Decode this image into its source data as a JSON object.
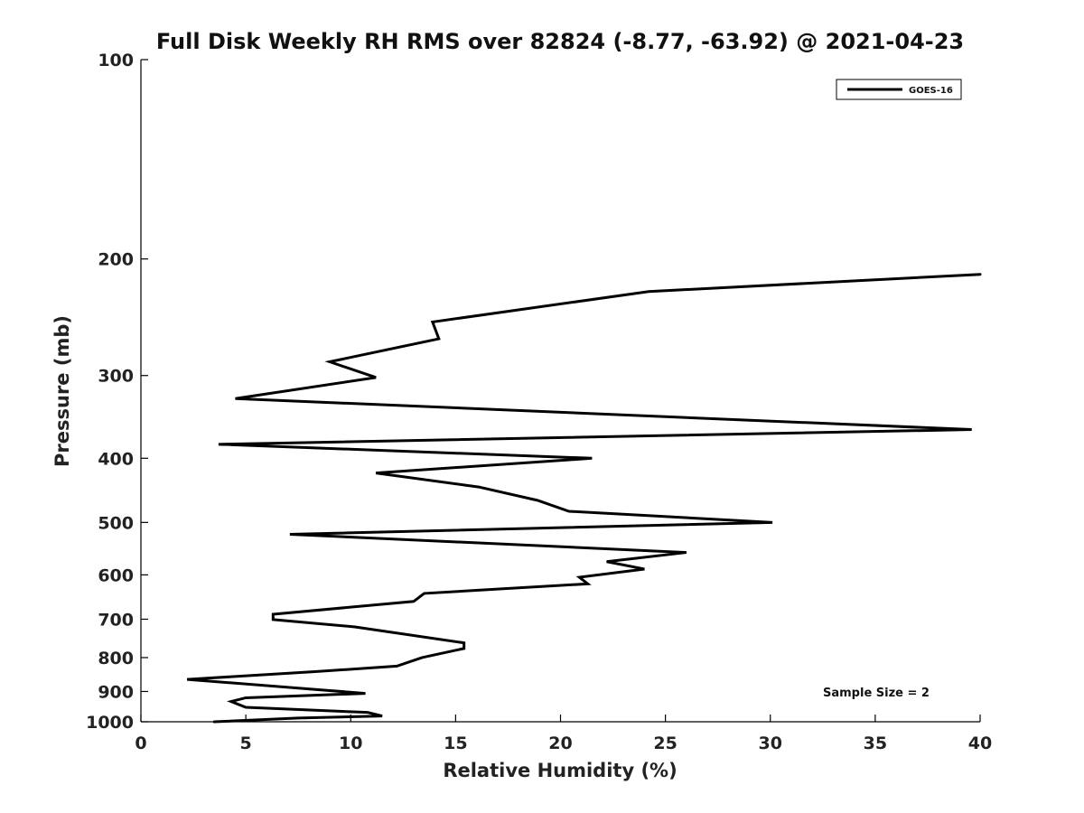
{
  "chart_data": {
    "type": "line",
    "title": "Full Disk Weekly RH RMS over 82824 (-8.77, -63.92) @ 2021-04-23",
    "xlabel": "Relative Humidity (%)",
    "ylabel": "Pressure (mb)",
    "xlim": [
      0,
      40
    ],
    "ylim": [
      1000,
      100
    ],
    "yscale": "log",
    "reversed_y": true,
    "grid": false,
    "legend_position": "top-right",
    "xticks": [
      0,
      5,
      10,
      15,
      20,
      25,
      30,
      35,
      40
    ],
    "yticks": [
      100,
      200,
      300,
      400,
      500,
      600,
      700,
      800,
      900,
      1000
    ],
    "series": [
      {
        "name": "GOES-16",
        "color": "#000000",
        "points": [
          {
            "x": 40.0,
            "y": 211
          },
          {
            "x": 24.2,
            "y": 224
          },
          {
            "x": 13.9,
            "y": 249
          },
          {
            "x": 14.2,
            "y": 264
          },
          {
            "x": 9.0,
            "y": 286
          },
          {
            "x": 11.2,
            "y": 302
          },
          {
            "x": 4.5,
            "y": 325
          },
          {
            "x": 39.6,
            "y": 362
          },
          {
            "x": 3.7,
            "y": 381
          },
          {
            "x": 21.5,
            "y": 400
          },
          {
            "x": 11.2,
            "y": 421
          },
          {
            "x": 16.1,
            "y": 442
          },
          {
            "x": 18.9,
            "y": 463
          },
          {
            "x": 20.4,
            "y": 481
          },
          {
            "x": 30.1,
            "y": 500
          },
          {
            "x": 7.1,
            "y": 521
          },
          {
            "x": 26.0,
            "y": 555
          },
          {
            "x": 22.2,
            "y": 573
          },
          {
            "x": 24.0,
            "y": 588
          },
          {
            "x": 20.9,
            "y": 605
          },
          {
            "x": 21.3,
            "y": 619
          },
          {
            "x": 13.5,
            "y": 640
          },
          {
            "x": 13.0,
            "y": 658
          },
          {
            "x": 6.3,
            "y": 688
          },
          {
            "x": 6.3,
            "y": 701
          },
          {
            "x": 10.2,
            "y": 719
          },
          {
            "x": 15.4,
            "y": 760
          },
          {
            "x": 15.4,
            "y": 775
          },
          {
            "x": 13.4,
            "y": 800
          },
          {
            "x": 12.2,
            "y": 824
          },
          {
            "x": 8.3,
            "y": 840
          },
          {
            "x": 2.2,
            "y": 863
          },
          {
            "x": 10.7,
            "y": 906
          },
          {
            "x": 5.0,
            "y": 920
          },
          {
            "x": 4.3,
            "y": 932
          },
          {
            "x": 5.0,
            "y": 951
          },
          {
            "x": 10.8,
            "y": 968
          },
          {
            "x": 11.5,
            "y": 980
          },
          {
            "x": 7.5,
            "y": 987
          },
          {
            "x": 3.5,
            "y": 1000
          }
        ]
      }
    ],
    "annotation": "Sample Size = 2"
  }
}
